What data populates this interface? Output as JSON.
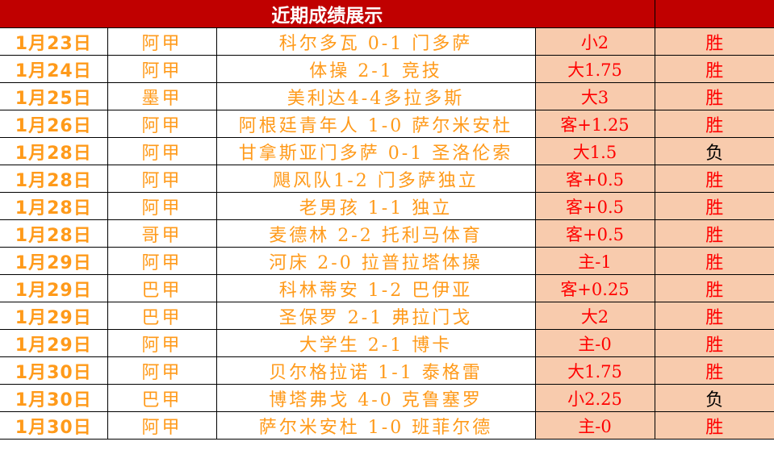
{
  "header": {
    "title": "近期成绩展示",
    "extra": ""
  },
  "colors": {
    "header_bg": "#c00000",
    "team_text": "#ff9a1a",
    "highlight_bg": "#f8cbad",
    "win": "#ff0000",
    "loss": "#000000"
  },
  "rows": [
    {
      "date": "1月23日",
      "league": "阿甲",
      "match": "科尔多瓦 0-1 门多萨",
      "handicap": "小2",
      "result": "胜"
    },
    {
      "date": "1月24日",
      "league": "阿甲",
      "match": "体操 2-1 竞技",
      "handicap": "大1.75",
      "result": "胜"
    },
    {
      "date": "1月25日",
      "league": "墨甲",
      "match": "美利达4-4多拉多斯",
      "handicap": "大3",
      "result": "胜"
    },
    {
      "date": "1月26日",
      "league": "阿甲",
      "match": "阿根廷青年人 1-0 萨尔米安杜",
      "handicap": "客+1.25",
      "result": "胜"
    },
    {
      "date": "1月28日",
      "league": "阿甲",
      "match": "甘拿斯亚门多萨 0-1 圣洛伦索",
      "handicap": "大1.5",
      "result": "负"
    },
    {
      "date": "1月28日",
      "league": "阿甲",
      "match": "飓风队1-2 门多萨独立",
      "handicap": "客+0.5",
      "result": "胜"
    },
    {
      "date": "1月28日",
      "league": "阿甲",
      "match": "老男孩 1-1 独立",
      "handicap": "客+0.5",
      "result": "胜"
    },
    {
      "date": "1月28日",
      "league": "哥甲",
      "match": "麦德林 2-2 托利马体育",
      "handicap": "客+0.5",
      "result": "胜"
    },
    {
      "date": "1月29日",
      "league": "阿甲",
      "match": "河床 2-0 拉普拉塔体操",
      "handicap": "主-1",
      "result": "胜"
    },
    {
      "date": "1月29日",
      "league": "巴甲",
      "match": "科林蒂安 1-2 巴伊亚",
      "handicap": "客+0.25",
      "result": "胜"
    },
    {
      "date": "1月29日",
      "league": "巴甲",
      "match": "圣保罗 2-1 弗拉门戈",
      "handicap": "大2",
      "result": "胜"
    },
    {
      "date": "1月29日",
      "league": "阿甲",
      "match": "大学生 2-1 博卡",
      "handicap": "主-0",
      "result": "胜"
    },
    {
      "date": "1月30日",
      "league": "阿甲",
      "match": "贝尔格拉诺 1-1 泰格雷",
      "handicap": "大1.75",
      "result": "胜"
    },
    {
      "date": "1月30日",
      "league": "巴甲",
      "match": "博塔弗戈 4-0 克鲁塞罗",
      "handicap": "小2.25",
      "result": "负"
    },
    {
      "date": "1月30日",
      "league": "阿甲",
      "match": "萨尔米安杜 1-0 班菲尔德",
      "handicap": "主-0",
      "result": "胜"
    }
  ]
}
